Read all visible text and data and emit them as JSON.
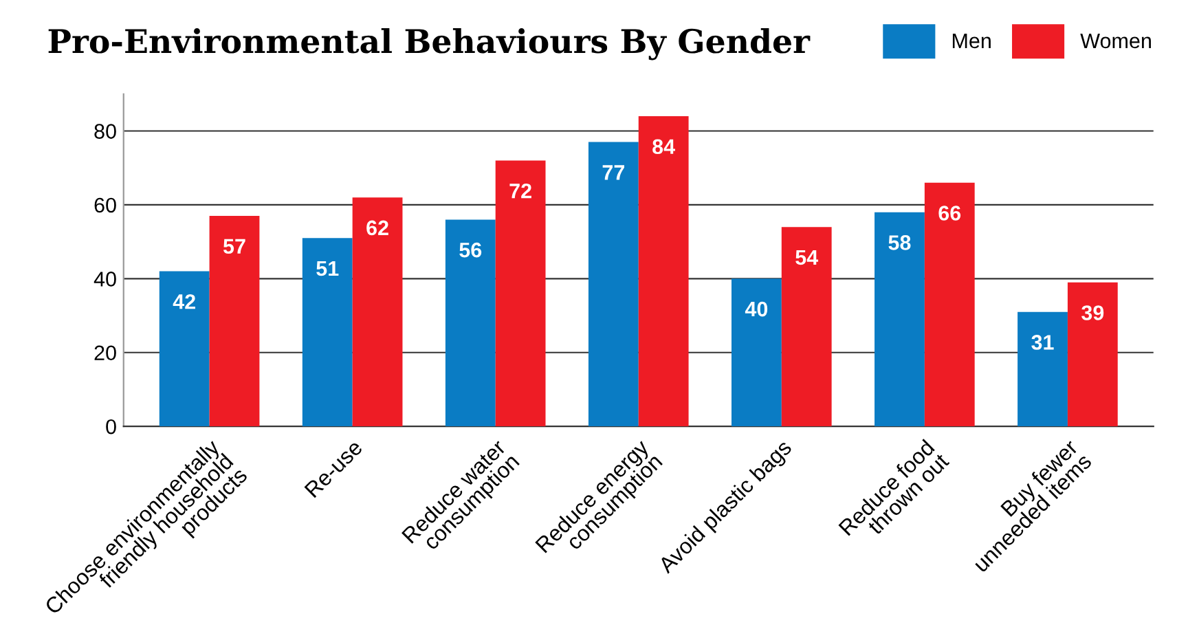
{
  "chart_data": {
    "type": "bar",
    "title": "Pro-Environmental Behaviours By Gender",
    "categories": [
      "Choose environmentally\nfriendly household\nproducts",
      "Re-use",
      "Reduce water\nconsumption",
      "Reduce energy\nconsumption",
      "Avoid plastic bags",
      "Reduce food\nthrown out",
      "Buy fewer\nunneeded items"
    ],
    "series": [
      {
        "name": "Men",
        "color": "#0a7cc4",
        "values": [
          42,
          51,
          56,
          77,
          40,
          58,
          31
        ]
      },
      {
        "name": "Women",
        "color": "#ee1c25",
        "values": [
          57,
          62,
          72,
          84,
          54,
          66,
          39
        ]
      }
    ],
    "ylim": [
      0,
      90
    ],
    "yticks": [
      0,
      20,
      40,
      60,
      80
    ],
    "grid": "y",
    "legend": "top right",
    "data_labels": true
  }
}
